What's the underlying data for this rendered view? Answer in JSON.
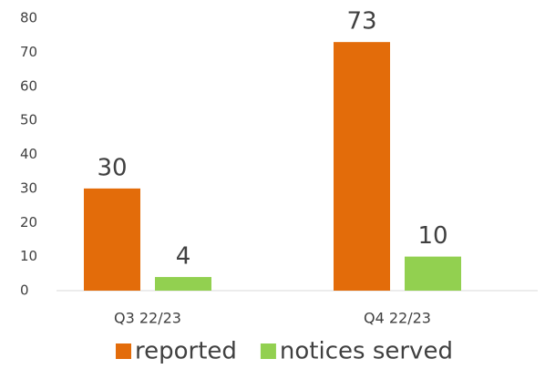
{
  "chart_data": {
    "type": "bar",
    "categories": [
      "Q3 22/23",
      "Q4 22/23"
    ],
    "series": [
      {
        "name": "reported",
        "color": "#e36c0a",
        "values": [
          30,
          73
        ]
      },
      {
        "name": "notices served",
        "color": "#92d050",
        "values": [
          4,
          10
        ]
      }
    ],
    "ylim": [
      0,
      80
    ],
    "yticks": [
      0,
      10,
      20,
      30,
      40,
      50,
      60,
      70,
      80
    ],
    "legend": "bottom"
  }
}
